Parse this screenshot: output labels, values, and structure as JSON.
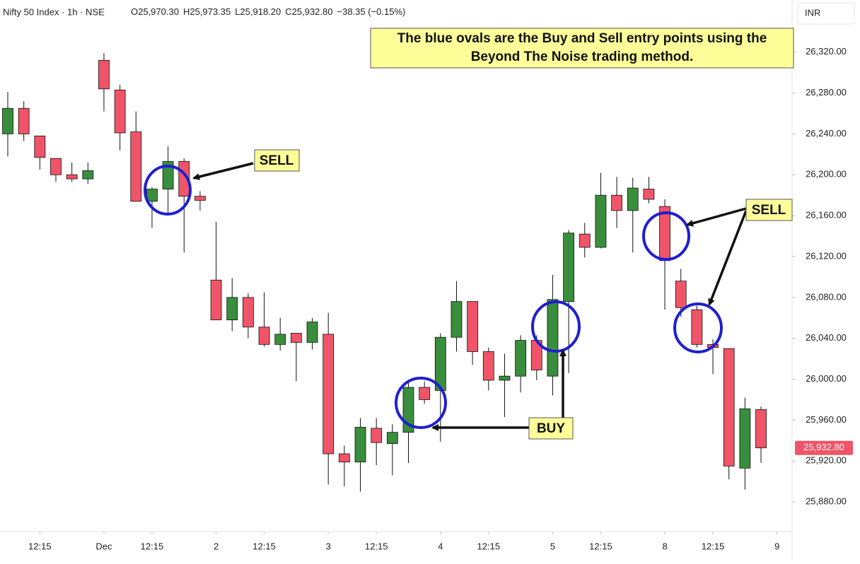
{
  "header": {
    "symbol": "Nifty 50 Index · 1h · NSE",
    "quote": [
      "O25,970.30",
      "H25,973.35",
      "L25,918.20",
      "C25,932.80"
    ],
    "change": "−38.35 (−0.15%)",
    "currency": "INR"
  },
  "annotations": {
    "note": [
      "The blue ovals are the Buy and Sell entry points using the",
      "Beyond The Noise trading method."
    ],
    "sell_left": "SELL",
    "buy": "BUY",
    "sell_right": "SELL"
  },
  "chart_data": {
    "type": "candlestick",
    "up_color": "#388e3c",
    "down_color": "#f05468",
    "open": [
      26240,
      26265,
      26238,
      26216,
      26200,
      26196,
      26312,
      26283,
      26242,
      26174,
      26186,
      26213,
      26179,
      26097,
      26058,
      26080,
      26051,
      26034,
      26045,
      26036,
      26044,
      25927,
      25919,
      25952,
      25937,
      25948,
      25992,
      25989,
      26041,
      26076,
      26027,
      25999,
      26003,
      26038,
      26003,
      26076,
      26142,
      26129,
      26180,
      26165,
      26186,
      26169,
      26096,
      26068,
      26034,
      26030,
      25913,
      25970.3
    ],
    "high": [
      26281,
      26272,
      26238,
      26216,
      26212,
      26212,
      26319,
      26288,
      26262,
      26188,
      26228,
      26216,
      26184,
      26154,
      26099,
      26084,
      26085,
      26060,
      26045,
      26060,
      26065,
      25935,
      25962,
      25962,
      25956,
      25999,
      25998,
      26045,
      26096,
      26076,
      26031,
      26025,
      26043,
      26043,
      26102,
      26146,
      26153,
      26202,
      26198,
      26197,
      26198,
      26176,
      26108,
      26072,
      26039,
      26030,
      25982,
      25973.35
    ],
    "low": [
      26218,
      26233,
      26205,
      26193,
      26193,
      26191,
      26262,
      26224,
      26174,
      26148,
      26162,
      26124,
      26165,
      26058,
      26047,
      26040,
      26032,
      26028,
      25998,
      26029,
      25897,
      25895,
      25890,
      25916,
      25906,
      25918,
      25976,
      25939,
      26027,
      26014,
      25989,
      25963,
      25987,
      25999,
      25984,
      26006,
      26119,
      26128,
      26148,
      26124,
      26172,
      26068,
      26061,
      26031,
      26005,
      25902,
      25892,
      25918.2
    ],
    "close": [
      26265,
      26240,
      26217,
      26200,
      26196,
      26204,
      26284,
      26241,
      26174,
      26186,
      26213,
      26179,
      26175,
      26058,
      26080,
      26051,
      26034,
      26044,
      26036,
      26056,
      25927,
      25919,
      25953,
      25938,
      25948,
      25992,
      25980,
      26041,
      26076,
      26027,
      25999,
      26003,
      26038,
      26009,
      26078,
      26143,
      26129,
      26180,
      26165,
      26187,
      26176,
      26116,
      26070,
      26034,
      26031,
      25915,
      25971,
      25932.8
    ],
    "ylim": [
      25851,
      26371
    ],
    "yticks": [
      {
        "value": 25880,
        "label": "25,880.00"
      },
      {
        "value": 25920,
        "label": "25,920.00"
      },
      {
        "value": 25960,
        "label": "25,960.00"
      },
      {
        "value": 26000,
        "label": "26,000.00"
      },
      {
        "value": 26040,
        "label": "26,040.00"
      },
      {
        "value": 26080,
        "label": "26,080.00"
      },
      {
        "value": 26120,
        "label": "26,120.00"
      },
      {
        "value": 26160,
        "label": "26,160.00"
      },
      {
        "value": 26200,
        "label": "26,200.00"
      },
      {
        "value": 26240,
        "label": "26,240.00"
      },
      {
        "value": 26280,
        "label": "26,280.00"
      },
      {
        "value": 26320,
        "label": "26,320.00"
      }
    ],
    "xticks": [
      {
        "value": 2,
        "label": "12:15"
      },
      {
        "value": 6,
        "label": "Dec"
      },
      {
        "value": 9,
        "label": "12:15"
      },
      {
        "value": 13,
        "label": "2"
      },
      {
        "value": 16,
        "label": "12:15"
      },
      {
        "value": 20,
        "label": "3"
      },
      {
        "value": 23,
        "label": "12:15"
      },
      {
        "value": 27,
        "label": "4"
      },
      {
        "value": 30,
        "label": "12:15"
      },
      {
        "value": 34,
        "label": "5"
      },
      {
        "value": 37,
        "label": "12:15"
      },
      {
        "value": 41,
        "label": "8"
      },
      {
        "value": 44,
        "label": "12:15"
      },
      {
        "value": 48,
        "label": "9"
      }
    ],
    "last_price": {
      "value": 25932.8,
      "label": "25,932.80"
    }
  }
}
